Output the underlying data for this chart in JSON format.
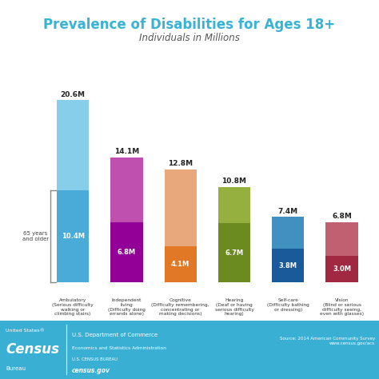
{
  "title": "Prevalence of Disabilities for Ages 18+",
  "subtitle": "Individuals in Millions",
  "cat_labels": [
    "Ambulatory\n(Serious difficulty\nwalking or\nclimbing stairs)",
    "Independent\nliving\n(Difficulty doing\nerrands alone)",
    "Cognitive\n(Difficulty remembering,\nconcentrating or\nmaking decisions)",
    "Hearing\n(Deaf or having\nserious difficulty\nhearing)",
    "Self-care\n(Difficulty bathing\nor dressing)",
    "Vision\n(Blind or serious\ndifficulty seeing,\neven with glasses)"
  ],
  "total_values": [
    20.6,
    14.1,
    12.8,
    10.8,
    7.4,
    6.8
  ],
  "older_values": [
    10.4,
    6.8,
    4.1,
    6.7,
    3.8,
    3.0
  ],
  "total_colors": [
    "#87CEEB",
    "#C050B0",
    "#E8A87C",
    "#96B040",
    "#4090C0",
    "#C06070"
  ],
  "older_colors": [
    "#4AAAD8",
    "#920098",
    "#E07825",
    "#6B8A20",
    "#1A5A9A",
    "#A02840"
  ],
  "title_color": "#3AB2D4",
  "footer_color": "#3AAFD4",
  "older_label": "65 years\nand older",
  "source_text": "Source: 2014 American Community Survey\nwww.census.gov/acs",
  "ylim": 24,
  "bar_width": 0.6
}
